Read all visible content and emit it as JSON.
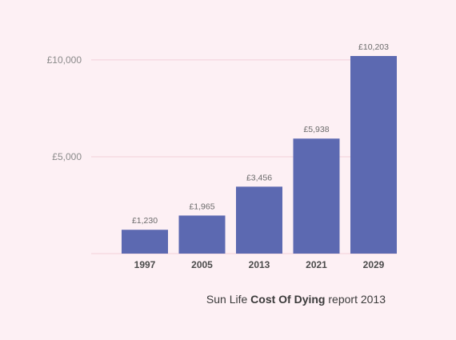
{
  "chart_data": {
    "type": "bar",
    "categories": [
      "1997",
      "2005",
      "2013",
      "2021",
      "2029"
    ],
    "values": [
      1230,
      1965,
      3456,
      5938,
      10203
    ],
    "value_labels": [
      "£1,230",
      "£1,965",
      "£3,456",
      "£5,938",
      "£10,203"
    ],
    "yticks": [
      {
        "value": 5000,
        "label": "£5,000"
      },
      {
        "value": 10000,
        "label": "£10,000"
      }
    ],
    "ylim": [
      0,
      10203
    ],
    "grid": true,
    "bar_color": "#5c69b1",
    "grid_color": "#f2cfd9"
  },
  "caption": {
    "prefix": "Sun Life ",
    "bold": "Cost Of Dying",
    "suffix": " report 2013"
  }
}
